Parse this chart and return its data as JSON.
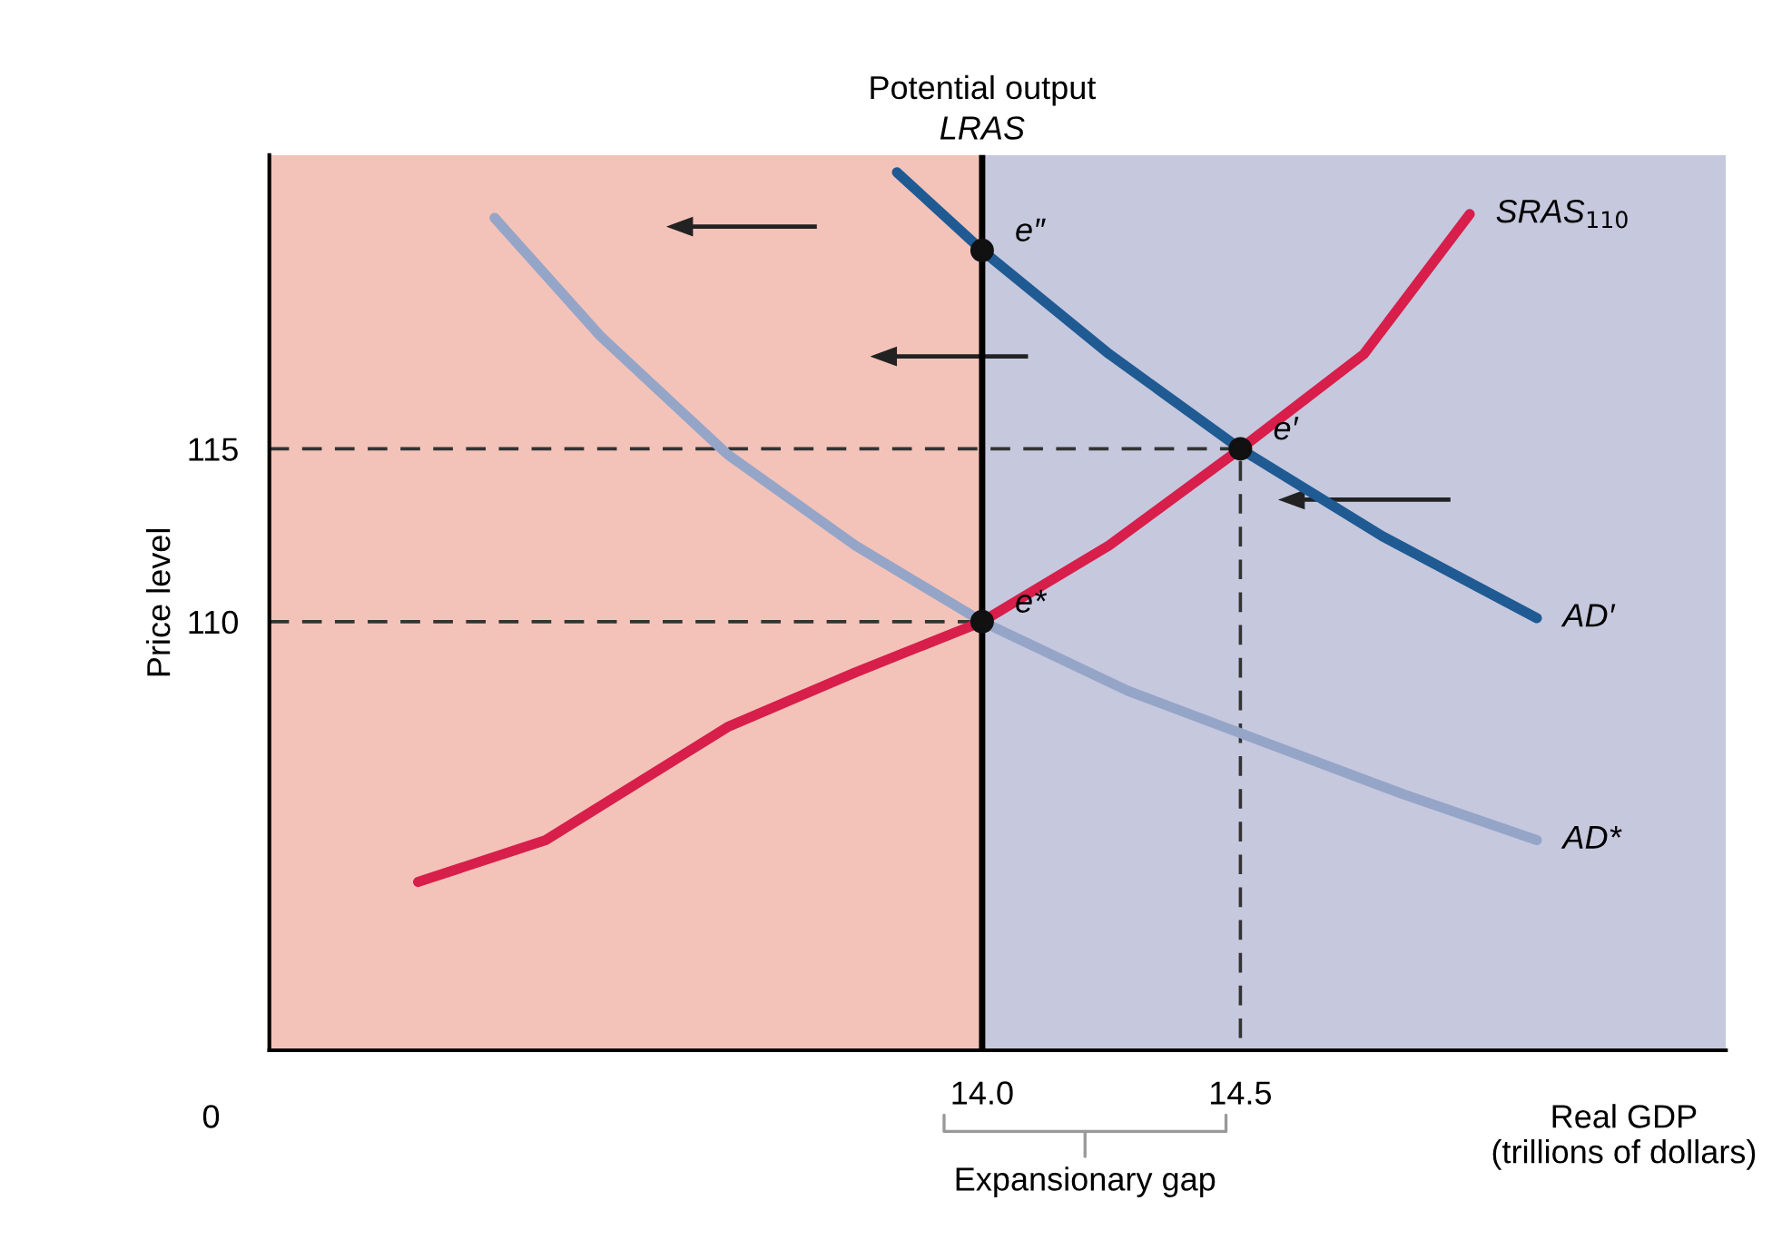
{
  "chart_data": {
    "type": "line",
    "title": "Potential output",
    "xlabel": "Real GDP\n(trillions of dollars)",
    "ylabel": "Price level",
    "xlim": [
      12.62,
      15.44
    ],
    "ylim": [
      97.6,
      123.5
    ],
    "xticks": [
      {
        "value": 14.0,
        "label": "14.0"
      },
      {
        "value": 14.5,
        "label": "14.5"
      }
    ],
    "yticks": [
      110,
      115
    ],
    "grid": false,
    "legend": false,
    "series": [
      {
        "name": "SRAS$_{110}$",
        "color": "#d81e4a",
        "x": [
          12.908,
          13.155,
          13.507,
          13.754,
          14.0,
          14.246,
          14.5,
          14.739,
          14.944
        ],
        "values": [
          102.47,
          103.68,
          106.95,
          108.53,
          110,
          112.21,
          115,
          117.74,
          121.79
        ]
      },
      {
        "name": "AD′",
        "color": "#1f5a93",
        "x": [
          13.835,
          14.0,
          14.246,
          14.5,
          14.775,
          15.074
        ],
        "values": [
          123.0,
          120.74,
          117.74,
          115,
          112.47,
          110.1
        ]
      },
      {
        "name": "AD*",
        "color": "#95a5c8",
        "x": [
          13.056,
          13.261,
          13.507,
          13.754,
          14.0,
          14.282,
          14.563,
          14.817,
          15.074
        ],
        "values": [
          121.68,
          118.26,
          114.84,
          112.21,
          110,
          108.0,
          106.42,
          105.0,
          103.68
        ]
      },
      {
        "color": "#333333",
        "line_style": "dashed",
        "x": [
          12.62,
          14.5,
          14.5
        ],
        "values": [
          115,
          115,
          97.6
        ]
      },
      {
        "color": "#333333",
        "line_style": "dashed",
        "x": [
          12.62,
          14.0
        ],
        "values": [
          110,
          110
        ]
      },
      {
        "type": "scatter",
        "color": "#111111",
        "marker": "circle",
        "x": [
          14.0,
          14.5,
          14.0
        ],
        "values": [
          120.74,
          115,
          110
        ],
        "value_labels": [
          "e″",
          "e′",
          "e*"
        ]
      }
    ],
    "ref_lines": [
      {
        "axis": "x",
        "value": 14.0,
        "label": "LRAS",
        "color": "#000000"
      }
    ],
    "bands": [
      {
        "axis": "x",
        "from": 12.62,
        "to": 14.0,
        "color": "#f3c3b9"
      },
      {
        "axis": "x",
        "from": 14.0,
        "to": 15.44,
        "color": "#c6c8de"
      }
    ],
    "annotations": [
      "0",
      "Expansionary gap"
    ]
  }
}
